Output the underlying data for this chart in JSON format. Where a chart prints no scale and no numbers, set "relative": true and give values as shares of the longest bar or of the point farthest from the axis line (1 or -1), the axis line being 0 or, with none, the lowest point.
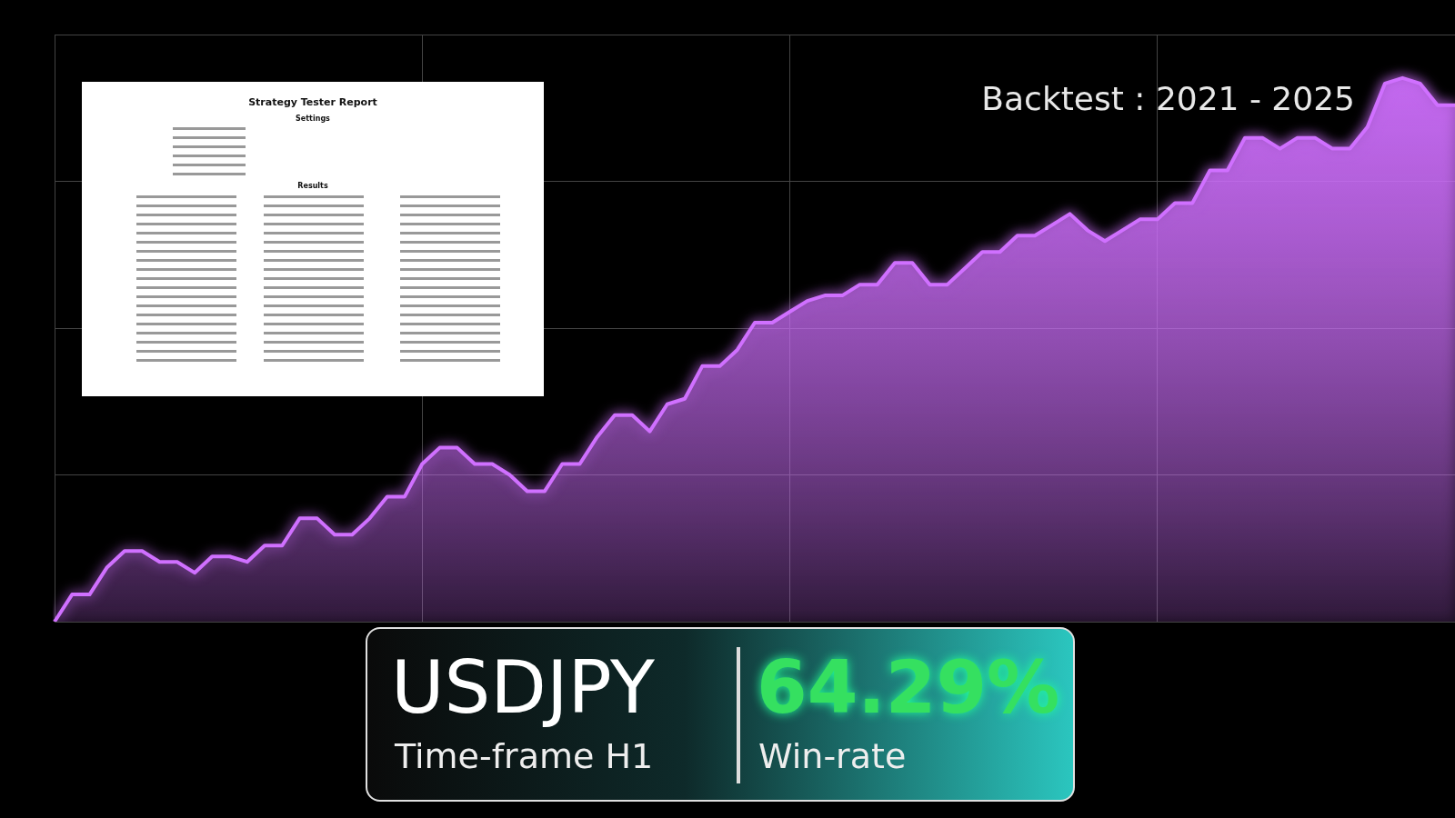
{
  "chart_data": {
    "type": "area",
    "relative": true,
    "grid": true,
    "annotations": [
      "Backtest : 2021 - 2025",
      "USDJPY",
      "Time-frame H1",
      "64.29%",
      "Win-rate",
      "Strategy Tester Report",
      "Settings",
      "Results"
    ],
    "categories": [
      null,
      null,
      null,
      null,
      null,
      null,
      null,
      null,
      null,
      null,
      null,
      null,
      null,
      null,
      null,
      null,
      null,
      null,
      null,
      null,
      null,
      null,
      null,
      null,
      null,
      null,
      null,
      null,
      null,
      null,
      null,
      null,
      null,
      null,
      null,
      null,
      null,
      null,
      null,
      null,
      null,
      null,
      null,
      null,
      null,
      null,
      null,
      null,
      null,
      null,
      null,
      null,
      null,
      null,
      null,
      null,
      null,
      null,
      null,
      null,
      null,
      null,
      null,
      null,
      null,
      null,
      null,
      null,
      null,
      null,
      null,
      null,
      null,
      null,
      null,
      null,
      null,
      null,
      null,
      null,
      null
    ],
    "series": [
      {
        "color": "#d070ff",
        "values": [
          0,
          0.05,
          0.05,
          0.1,
          0.13,
          0.13,
          0.11,
          0.11,
          0.09,
          0.12,
          0.12,
          0.11,
          0.14,
          0.14,
          0.19,
          0.19,
          0.16,
          0.16,
          0.19,
          0.23,
          0.23,
          0.29,
          0.32,
          0.32,
          0.29,
          0.29,
          0.27,
          0.24,
          0.24,
          0.29,
          0.29,
          0.34,
          0.38,
          0.38,
          0.35,
          0.4,
          0.41,
          0.47,
          0.47,
          0.5,
          0.55,
          0.55,
          0.57,
          0.59,
          0.6,
          0.6,
          0.62,
          0.62,
          0.66,
          0.66,
          0.62,
          0.62,
          0.65,
          0.68,
          0.68,
          0.71,
          0.71,
          0.73,
          0.75,
          0.72,
          0.7,
          0.72,
          0.74,
          0.74,
          0.77,
          0.77,
          0.83,
          0.83,
          0.89,
          0.89,
          0.87,
          0.89,
          0.89,
          0.87,
          0.87,
          0.91,
          0.99,
          1,
          0.99,
          0.95,
          0.95
        ]
      }
    ]
  }
}
